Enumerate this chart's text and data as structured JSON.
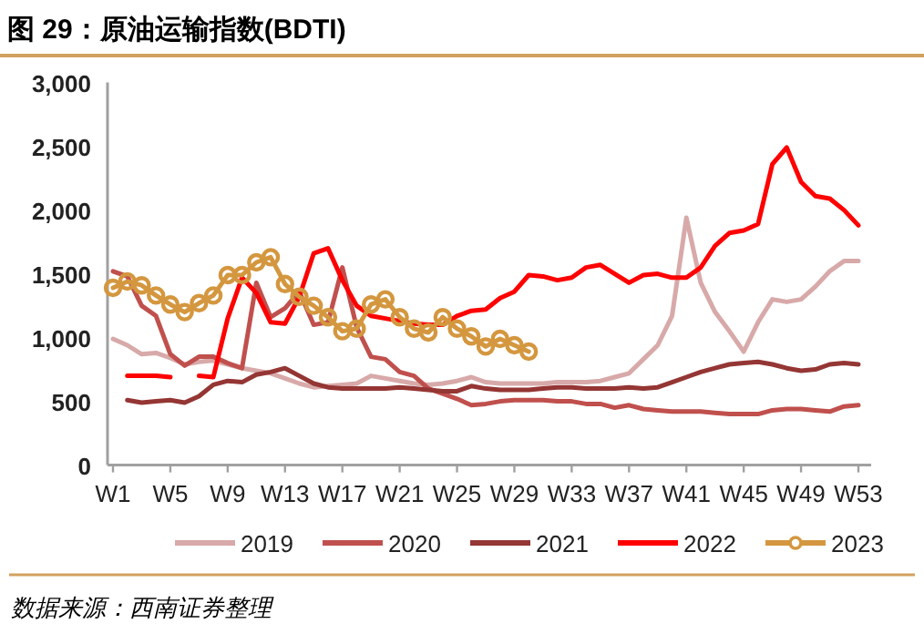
{
  "chart_data": {
    "type": "line",
    "title": "图 29：原油运输指数(BDTI)",
    "annotations": [
      "数据来源：西南证券整理"
    ],
    "categories": [
      "W1",
      null,
      null,
      null,
      "W5",
      null,
      null,
      null,
      "W9",
      null,
      null,
      null,
      "W13",
      null,
      null,
      null,
      "W17",
      null,
      null,
      null,
      "W21",
      null,
      null,
      null,
      "W25",
      null,
      null,
      null,
      "W29",
      null,
      null,
      null,
      "W33",
      null,
      null,
      null,
      "W37",
      null,
      null,
      null,
      "W41",
      null,
      null,
      null,
      "W45",
      null,
      null,
      null,
      "W49",
      null,
      null,
      null,
      "W53"
    ],
    "ylim": [
      0,
      3000
    ],
    "yticks": [
      {
        "value": 0,
        "label": "0"
      },
      {
        "value": 500,
        "label": "500"
      },
      {
        "value": 1000,
        "label": "1,000"
      },
      {
        "value": 1500,
        "label": "1,500"
      },
      {
        "value": 2000,
        "label": "2,000"
      },
      {
        "value": 2500,
        "label": "2,500"
      },
      {
        "value": 3000,
        "label": "3,000"
      }
    ],
    "grid": false,
    "legend": "bottom",
    "line_style": "solid",
    "series": [
      {
        "name": "2019",
        "color": "#d8a9a9",
        "marker": "none",
        "values": [
          990,
          940,
          870,
          880,
          840,
          790,
          810,
          820,
          790,
          760,
          740,
          720,
          680,
          640,
          610,
          620,
          630,
          640,
          700,
          680,
          660,
          640,
          630,
          640,
          660,
          690,
          650,
          640,
          640,
          640,
          640,
          650,
          650,
          650,
          660,
          690,
          720,
          830,
          940,
          1170,
          1940,
          1430,
          1200,
          1050,
          890,
          1120,
          1300,
          1280,
          1300,
          1400,
          1520,
          1600,
          1600
        ]
      },
      {
        "name": "2020",
        "color": "#c0504d",
        "marker": "none",
        "values": [
          1520,
          1480,
          1250,
          1170,
          870,
          780,
          850,
          850,
          800,
          760,
          1430,
          1160,
          1230,
          1360,
          1100,
          1120,
          1550,
          1080,
          850,
          830,
          730,
          700,
          600,
          560,
          520,
          470,
          480,
          500,
          510,
          510,
          510,
          500,
          500,
          480,
          480,
          450,
          470,
          440,
          430,
          420,
          420,
          420,
          410,
          400,
          400,
          400,
          430,
          440,
          440,
          430,
          420,
          460,
          470
        ]
      },
      {
        "name": "2021",
        "color": "#943634",
        "marker": "none",
        "values": [
          null,
          510,
          490,
          500,
          510,
          490,
          540,
          630,
          660,
          650,
          710,
          730,
          760,
          700,
          640,
          610,
          600,
          600,
          600,
          600,
          610,
          600,
          590,
          580,
          580,
          620,
          600,
          590,
          590,
          590,
          600,
          610,
          610,
          600,
          600,
          600,
          610,
          600,
          610,
          650,
          690,
          730,
          760,
          790,
          800,
          810,
          790,
          760,
          740,
          750,
          790,
          800,
          790
        ]
      },
      {
        "name": "2022",
        "color": "#ff0000",
        "marker": "none",
        "values": [
          null,
          700,
          700,
          700,
          690,
          null,
          700,
          690,
          1150,
          1470,
          1350,
          1120,
          1110,
          1320,
          1660,
          1700,
          1450,
          1250,
          1170,
          1150,
          1130,
          1110,
          1100,
          1100,
          1170,
          1210,
          1220,
          1310,
          1360,
          1490,
          1480,
          1450,
          1470,
          1550,
          1570,
          1500,
          1430,
          1490,
          1500,
          1470,
          1470,
          1550,
          1720,
          1820,
          1840,
          1890,
          2360,
          2490,
          2220,
          2110,
          2090,
          2000,
          1880
        ]
      },
      {
        "name": "2023",
        "color": "#d4973f",
        "marker": "circle",
        "values": [
          1390,
          1440,
          1410,
          1330,
          1260,
          1200,
          1270,
          1330,
          1490,
          1490,
          1590,
          1630,
          1420,
          1320,
          1250,
          1160,
          1050,
          1070,
          1260,
          1300,
          1160,
          1070,
          1040,
          1160,
          1070,
          1010,
          930,
          990,
          940,
          890,
          null,
          null,
          null,
          null,
          null,
          null,
          null,
          null,
          null,
          null,
          null,
          null,
          null,
          null,
          null,
          null,
          null,
          null,
          null,
          null,
          null,
          null,
          null
        ]
      }
    ]
  }
}
